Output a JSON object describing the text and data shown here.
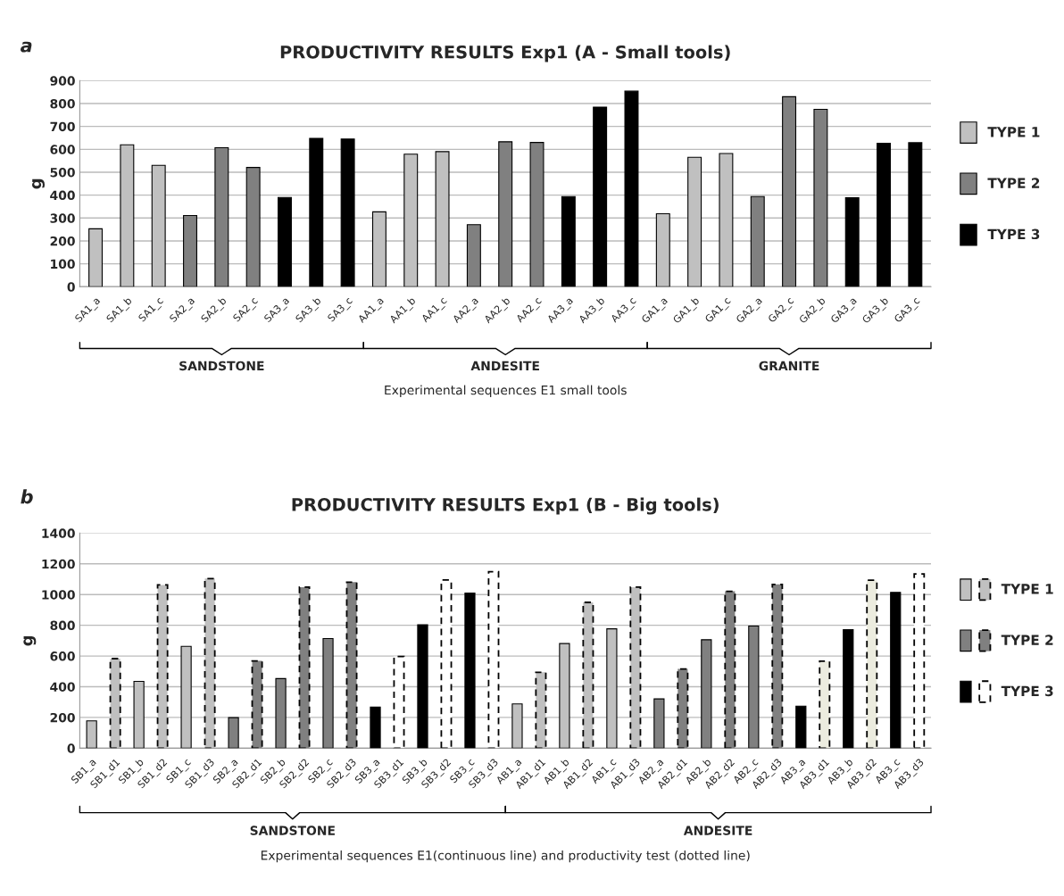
{
  "chart_data": [
    {
      "type": "bar",
      "title": "PRODUCTIVITY RESULTS Exp1 (A - Small tools)",
      "xlabel": "Experimental sequences E1 small tools",
      "ylabel": "g",
      "categories": [
        "SA1_a",
        "SA1_b",
        "SA1_c",
        "SA2_a",
        "SA2_b",
        "SA2_c",
        "SA3_a",
        "SA3_b",
        "SA3_c",
        "AA1_a",
        "AA1_b",
        "AA1_c",
        "AA2_a",
        "AA2_b",
        "AA2_c",
        "AA3_a",
        "AA3_b",
        "AA3_c",
        "GA1_a",
        "GA1_b",
        "GA1_c",
        "GA2_a",
        "GA2_c",
        "GA2_b",
        "GA3_a",
        "GA3_b",
        "GA3_c"
      ],
      "series": [
        {
          "name": "TYPE 1",
          "color": "#c0c0c0",
          "values": [
            253,
            620,
            530,
            null,
            null,
            null,
            null,
            null,
            null,
            327,
            579,
            590,
            null,
            null,
            null,
            null,
            null,
            null,
            319,
            565,
            582,
            null,
            null,
            null,
            null,
            null,
            null
          ]
        },
        {
          "name": "TYPE 2",
          "color": "#808080",
          "values": [
            null,
            null,
            null,
            311,
            607,
            521,
            null,
            null,
            null,
            null,
            null,
            null,
            271,
            633,
            630,
            null,
            null,
            null,
            null,
            null,
            null,
            394,
            830,
            775,
            null,
            null,
            null
          ]
        },
        {
          "name": "TYPE 3",
          "color": "#000000",
          "values": [
            null,
            null,
            null,
            null,
            null,
            null,
            390,
            648,
            645,
            null,
            null,
            null,
            null,
            null,
            null,
            394,
            784,
            854,
            null,
            null,
            null,
            null,
            null,
            null,
            389,
            626,
            629
          ]
        }
      ],
      "ylim": [
        0,
        900
      ],
      "yticks": [
        0,
        100,
        200,
        300,
        400,
        500,
        600,
        700,
        800,
        900
      ],
      "grid": "y",
      "legend": "right",
      "annotations": [
        "a",
        "SANDSTONE",
        "ANDESITE",
        "GRANITE"
      ]
    },
    {
      "type": "bar",
      "title": "PRODUCTIVITY RESULTS Exp1 (B - Big tools)",
      "xlabel": "Experimental sequences E1(continuous line) and productivity test (dotted line)",
      "ylabel": "g",
      "categories": [
        "SB1_a",
        "SB1_d1",
        "SB1_b",
        "SB1_d2",
        "SB1_c",
        "SB1_d3",
        "SB2_a",
        "SB2_d1",
        "SB2_b",
        "SB2_d2",
        "SB2_c",
        "SB2_d3",
        "SB3_a",
        "SB3_d1",
        "SB3_b",
        "SB3_d2",
        "SB3_c",
        "SB3_d3",
        "AB1_a",
        "AB1_d1",
        "AB1_b",
        "AB1_d2",
        "AB1_c",
        "AB1_d3",
        "AB2_a",
        "AB2_d1",
        "AB2_b",
        "AB2_d2",
        "AB2_c",
        "AB2_d3",
        "AB3_a",
        "AB3_d1",
        "AB3_b",
        "AB3_d2",
        "AB3_c",
        "AB3_d3"
      ],
      "series": [
        {
          "name": "TYPE 1",
          "color": "#c0c0c0",
          "line_style": "solid",
          "values": [
            178,
            null,
            435,
            null,
            663,
            null,
            null,
            null,
            null,
            null,
            null,
            null,
            null,
            null,
            null,
            null,
            null,
            null,
            288,
            null,
            681,
            null,
            777,
            null,
            null,
            null,
            null,
            null,
            null,
            null,
            null,
            null,
            null,
            null,
            null,
            null
          ]
        },
        {
          "color": "#c0c0c0",
          "line_style": "dashed",
          "colors": [
            "#c0c0c0",
            "#c0c0c0",
            "#c0c0c0",
            "#c0c0c0",
            "#c0c0c0",
            "#c0c0c0",
            "#c0c0c0",
            "#c0c0c0",
            "#c0c0c0",
            "#c0c0c0",
            "#c0c0c0",
            "#c0c0c0",
            "#c0c0c0",
            "#c0c0c0",
            "#c0c0c0",
            "#c0c0c0",
            "#c0c0c0",
            "#c0c0c0",
            "#c0c0c0",
            "#c0c0c0",
            "#c0c0c0",
            "#c0c0c0",
            "#c0c0c0",
            "#c0c0c0",
            "#c0c0c0",
            "#c0c0c0",
            "#c0c0c0",
            "#c0c0c0",
            "#c0c0c0",
            "#c0c0c0",
            "#c0c0c0",
            "#ececdf",
            "#c0c0c0",
            "#ececdf",
            "#c0c0c0",
            "#c0c0c0"
          ],
          "values": [
            null,
            583,
            null,
            1063,
            null,
            1104,
            null,
            null,
            null,
            null,
            null,
            null,
            null,
            null,
            null,
            null,
            null,
            null,
            null,
            494,
            null,
            949,
            null,
            1048,
            null,
            null,
            null,
            null,
            null,
            null,
            null,
            566,
            null,
            1093,
            null,
            null
          ]
        },
        {
          "name": "TYPE 2",
          "color": "#808080",
          "line_style": "solid",
          "values": [
            null,
            null,
            null,
            null,
            null,
            null,
            199,
            null,
            453,
            null,
            714,
            null,
            null,
            null,
            null,
            null,
            null,
            null,
            null,
            null,
            null,
            null,
            null,
            null,
            321,
            null,
            706,
            null,
            795,
            null,
            null,
            null,
            null,
            null,
            null,
            null
          ]
        },
        {
          "color": "#808080",
          "line_style": "dashed",
          "values": [
            null,
            null,
            null,
            null,
            null,
            null,
            null,
            568,
            null,
            1048,
            null,
            1081,
            null,
            null,
            null,
            null,
            null,
            null,
            null,
            null,
            null,
            null,
            null,
            null,
            null,
            516,
            null,
            1021,
            null,
            1066,
            null,
            null,
            null,
            null,
            null,
            null
          ]
        },
        {
          "name": "TYPE 3",
          "color": "#000000",
          "line_style": "solid",
          "values": [
            null,
            null,
            null,
            null,
            null,
            null,
            null,
            null,
            null,
            null,
            null,
            null,
            267,
            null,
            804,
            null,
            1009,
            null,
            null,
            null,
            null,
            null,
            null,
            null,
            null,
            null,
            null,
            null,
            null,
            null,
            274,
            null,
            772,
            null,
            1014,
            null
          ]
        },
        {
          "color": "#ffffff",
          "line_style": "dashed",
          "values": [
            null,
            null,
            null,
            null,
            null,
            null,
            null,
            null,
            null,
            null,
            null,
            null,
            null,
            597,
            null,
            1095,
            null,
            1149,
            null,
            null,
            null,
            null,
            null,
            null,
            null,
            null,
            null,
            null,
            null,
            null,
            null,
            null,
            null,
            null,
            null,
            1134
          ]
        }
      ],
      "ylim": [
        0,
        1400
      ],
      "yticks": [
        0,
        200,
        400,
        600,
        800,
        1000,
        1200,
        1400
      ],
      "grid": "y",
      "legend": "right",
      "annotations": [
        "b",
        "SANDSTONE",
        "ANDESITE"
      ]
    }
  ]
}
